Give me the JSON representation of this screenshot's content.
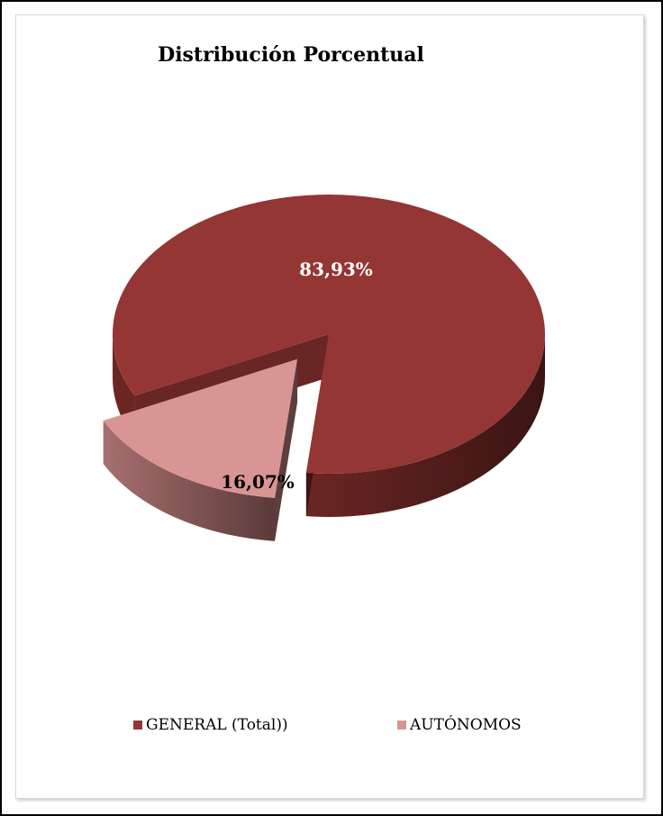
{
  "chart_data": {
    "type": "pie",
    "title": "Distribución Porcentual",
    "categories": [
      "GENERAL (Total))",
      "AUTÓNOMOS"
    ],
    "values": [
      83.93,
      16.07
    ],
    "data_labels": [
      "83,93%",
      "16,07%"
    ],
    "colors": [
      "#943634",
      "#d99594"
    ],
    "legend_position": "bottom",
    "style": "3d-exploded"
  },
  "legend": {
    "items": [
      {
        "label": "GENERAL (Total))",
        "color": "#943634"
      },
      {
        "label": "AUTÓNOMOS",
        "color": "#d99594"
      }
    ]
  }
}
